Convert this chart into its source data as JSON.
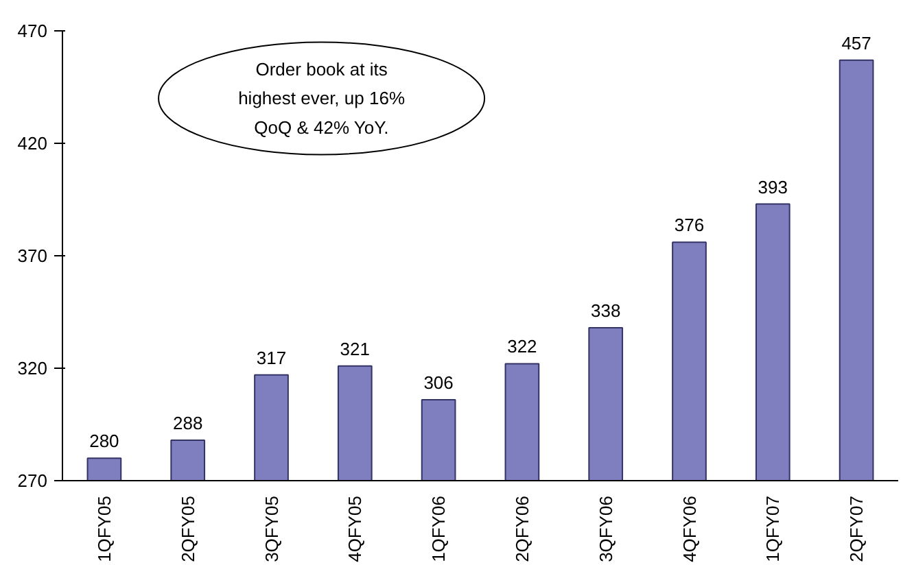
{
  "chart_data": {
    "type": "bar",
    "categories": [
      "1QFY05",
      "2QFY05",
      "3QFY05",
      "4QFY05",
      "1QFY06",
      "2QFY06",
      "3QFY06",
      "4QFY06",
      "1QFY07",
      "2QFY07"
    ],
    "values": [
      280,
      288,
      317,
      321,
      306,
      322,
      338,
      376,
      393,
      457
    ],
    "color": "#7f7fbf",
    "ylim": [
      270,
      470
    ],
    "yticks": [
      270,
      320,
      370,
      420,
      470
    ],
    "data_labels": true,
    "grid": false,
    "annotations": [
      "Order book at its highest ever, up 16% QoQ & 42% YoY."
    ]
  }
}
